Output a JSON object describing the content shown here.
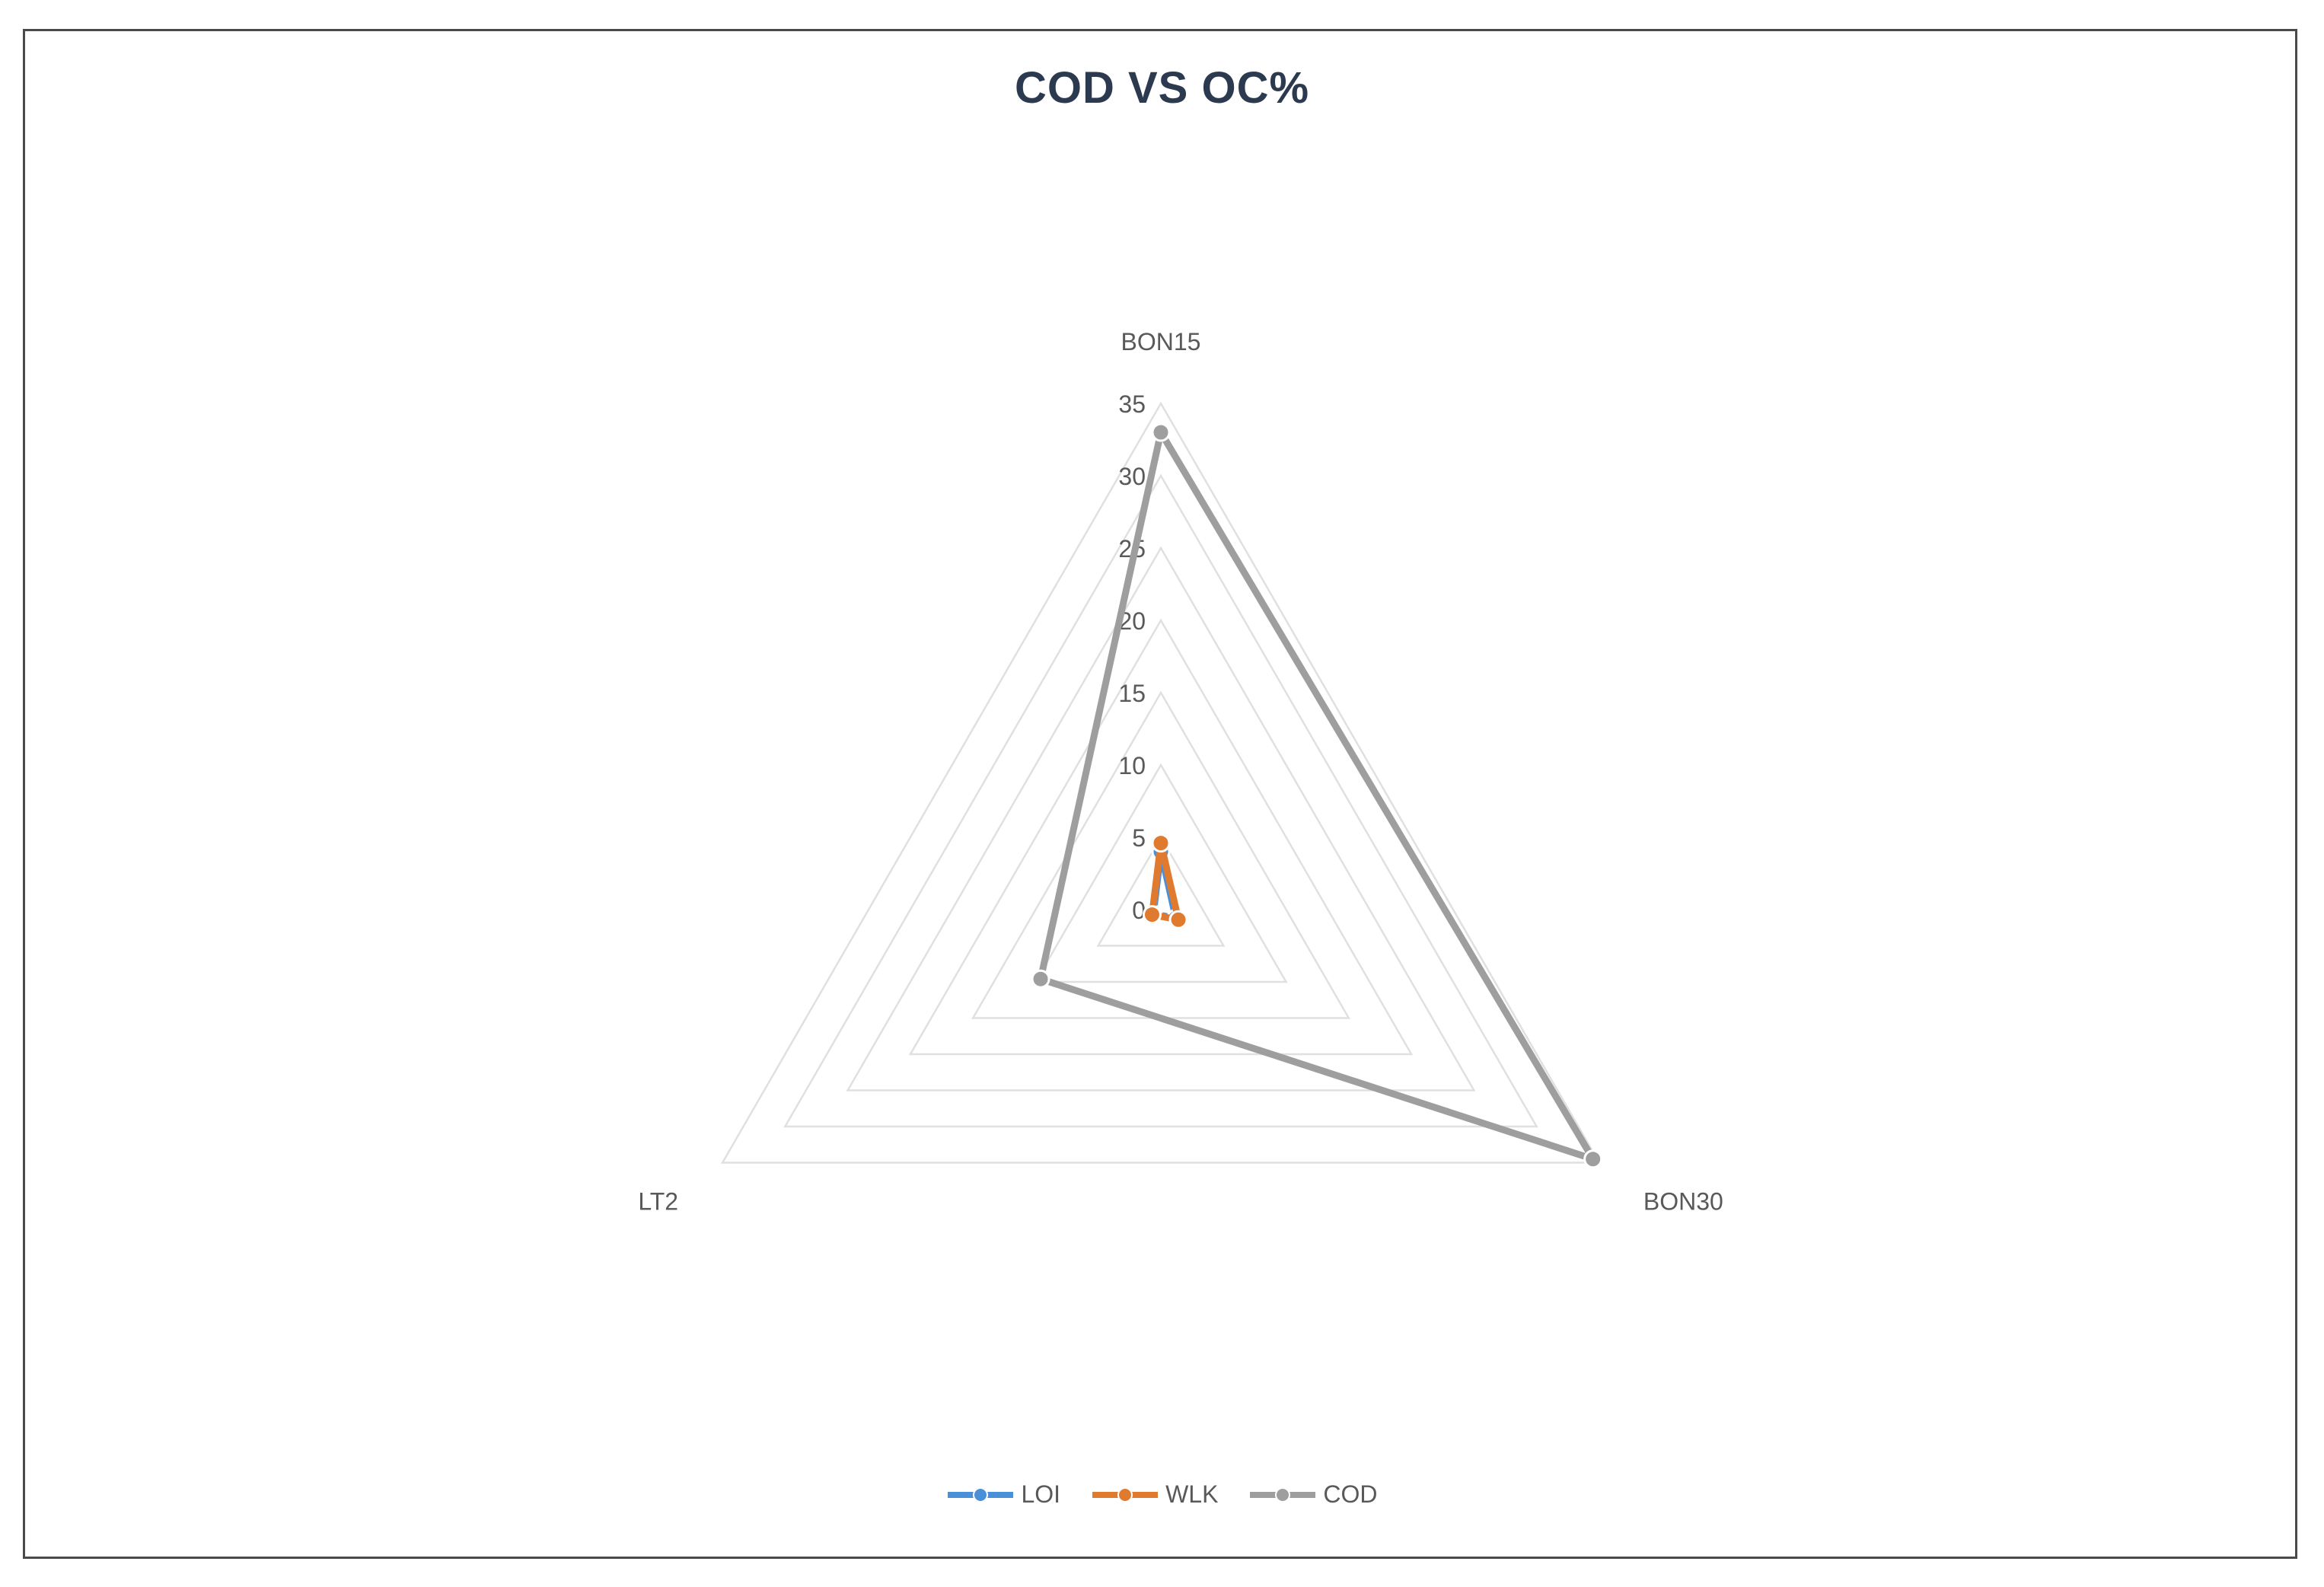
{
  "chart_data": {
    "type": "radar",
    "title": "COD VS OC%",
    "categories": [
      "BON15",
      "BON30",
      "LT2"
    ],
    "radial_ticks": [
      "0",
      "5",
      "10",
      "15",
      "20",
      "25",
      "30",
      "35"
    ],
    "rmin": 0,
    "rmax": 35,
    "grid": true,
    "legend_position": "bottom",
    "series": [
      {
        "name": "LOI",
        "values": [
          4,
          1.2,
          0.6
        ],
        "color": "#4a90d9"
      },
      {
        "name": "WLK",
        "values": [
          4.6,
          1.4,
          0.7
        ],
        "color": "#e07a2f"
      },
      {
        "name": "COD",
        "values": [
          33,
          34.5,
          9.6
        ],
        "color": "#9e9e9e"
      }
    ]
  }
}
